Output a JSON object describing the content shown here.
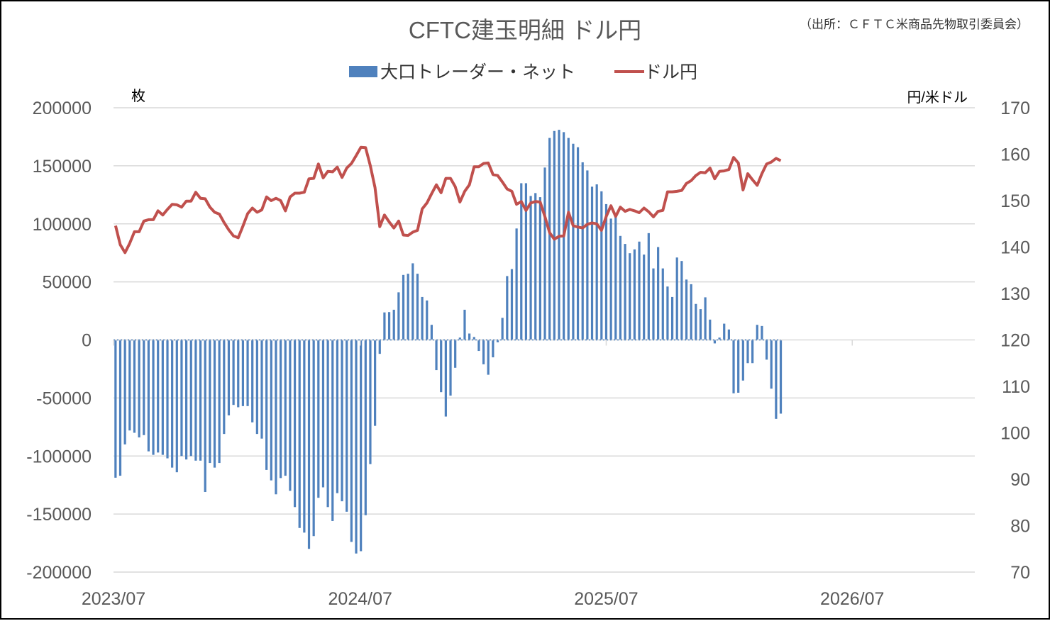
{
  "chart_data": {
    "type": "bar+line",
    "title": "CFTC建玉明細 ドル円",
    "source": "（出所：ＣＦＴＣ米商品先物取引委員会）",
    "left_unit": "枚",
    "right_unit": "円/米ドル",
    "left_ylim": [
      -200000,
      200000
    ],
    "left_ticks": [
      "200000",
      "150000",
      "100000",
      "50000",
      "0",
      "-50000",
      "-100000",
      "-150000",
      "-200000"
    ],
    "right_ylim": [
      70,
      170
    ],
    "right_ticks": [
      "170",
      "160",
      "150",
      "140",
      "130",
      "120",
      "110",
      "100",
      "90",
      "80",
      "70"
    ],
    "x_ticks": [
      "2023/07",
      "2024/07",
      "2025/07",
      "2026/07"
    ],
    "grid": true,
    "legend_placement": "top",
    "colors": {
      "bars": "#4f81bd",
      "line": "#c0504d",
      "title": "#595959"
    },
    "dates": [
      "2023-07-04",
      "2023-07-11",
      "2023-07-18",
      "2023-07-25",
      "2023-08-01",
      "2023-08-08",
      "2023-08-15",
      "2023-08-22",
      "2023-08-29",
      "2023-09-05",
      "2023-09-12",
      "2023-09-19",
      "2023-09-26",
      "2023-10-03",
      "2023-10-10",
      "2023-10-17",
      "2023-10-24",
      "2023-10-31",
      "2023-11-07",
      "2023-11-14",
      "2023-11-21",
      "2023-11-28",
      "2023-12-05",
      "2023-12-12",
      "2023-12-19",
      "2023-12-26",
      "2024-01-02",
      "2024-01-09",
      "2024-01-16",
      "2024-01-23",
      "2024-01-30",
      "2024-02-06",
      "2024-02-13",
      "2024-02-20",
      "2024-02-27",
      "2024-03-05",
      "2024-03-12",
      "2024-03-19",
      "2024-03-26",
      "2024-04-02",
      "2024-04-09",
      "2024-04-16",
      "2024-04-23",
      "2024-04-30",
      "2024-05-07",
      "2024-05-14",
      "2024-05-21",
      "2024-05-28",
      "2024-06-04",
      "2024-06-11",
      "2024-06-18",
      "2024-06-25",
      "2024-07-02",
      "2024-07-09",
      "2024-07-16",
      "2024-07-23",
      "2024-07-30",
      "2024-08-06",
      "2024-08-13",
      "2024-08-20",
      "2024-08-27",
      "2024-09-03",
      "2024-09-10",
      "2024-09-17",
      "2024-09-24",
      "2024-10-01",
      "2024-10-08",
      "2024-10-15",
      "2024-10-22",
      "2024-10-29",
      "2024-11-05",
      "2024-11-12",
      "2024-11-19",
      "2024-11-26",
      "2024-12-03",
      "2024-12-10",
      "2024-12-17",
      "2024-12-24",
      "2024-12-31",
      "2025-01-07",
      "2025-01-14",
      "2025-01-21",
      "2025-01-28",
      "2025-02-04",
      "2025-02-11",
      "2025-02-18",
      "2025-02-25",
      "2025-03-04",
      "2025-03-11",
      "2025-03-18",
      "2025-03-25",
      "2025-04-01",
      "2025-04-08",
      "2025-04-15",
      "2025-04-22",
      "2025-04-29",
      "2025-05-06",
      "2025-05-13",
      "2025-05-20",
      "2025-05-27",
      "2025-06-03",
      "2025-06-10",
      "2025-06-17",
      "2025-06-24",
      "2025-07-01",
      "2025-07-08",
      "2025-07-15",
      "2025-07-22",
      "2025-07-29",
      "2025-08-05",
      "2025-08-12",
      "2025-08-19",
      "2025-08-26",
      "2025-09-02",
      "2025-09-09",
      "2025-09-16",
      "2025-09-23",
      "2025-09-30",
      "2025-10-07",
      "2025-10-14",
      "2025-10-21",
      "2025-10-28",
      "2025-11-04",
      "2025-11-11",
      "2025-11-18",
      "2025-11-25",
      "2025-12-02",
      "2025-12-09",
      "2025-12-16",
      "2025-12-23",
      "2025-12-30",
      "2026-01-06",
      "2026-01-13",
      "2026-01-20",
      "2026-01-27",
      "2026-02-03",
      "2026-02-10",
      "2026-02-17",
      "2026-02-24",
      "2026-03-03",
      "2026-03-10",
      "2026-03-17"
    ],
    "series": [
      {
        "name": "大口トレーダー・ネット",
        "type": "bar",
        "axis": "left",
        "values": [
          -118700,
          -117000,
          -90000,
          -78000,
          -80000,
          -84000,
          -82000,
          -96000,
          -99000,
          -97000,
          -99000,
          -102000,
          -110000,
          -114000,
          -100000,
          -103000,
          -100000,
          -104000,
          -104000,
          -131000,
          -106000,
          -110000,
          -106000,
          -81000,
          -65000,
          -56000,
          -58000,
          -57000,
          -57000,
          -71000,
          -81000,
          -85000,
          -112000,
          -121000,
          -133000,
          -119000,
          -117000,
          -130000,
          -144000,
          -162000,
          -166000,
          -180000,
          -169000,
          -136000,
          -127000,
          -144000,
          -156000,
          -132000,
          -139000,
          -148000,
          -174000,
          -184000,
          -182000,
          -151000,
          -107000,
          -74000,
          -12000,
          23700,
          24000,
          26000,
          41000,
          56000,
          57000,
          66000,
          57000,
          37000,
          34000,
          13000,
          -26000,
          -45000,
          -66000,
          -48000,
          -24000,
          2000,
          26000,
          5500,
          2500,
          -9500,
          -21000,
          -30000,
          -15000,
          -2000,
          19000,
          55000,
          61000,
          96000,
          135000,
          135000,
          124000,
          126500,
          123000,
          148500,
          174000,
          180000,
          181000,
          179000,
          174000,
          169000,
          166000,
          153000,
          146000,
          132000,
          134000,
          128000,
          117000,
          104500,
          108600,
          89600,
          82700,
          74700,
          78000,
          84700,
          73500,
          92000,
          61600,
          80000,
          61600,
          46000,
          37000,
          71000,
          68000,
          52000,
          48000,
          31000,
          26500,
          36700,
          17500,
          -3000,
          2000,
          14000,
          9000,
          -46000,
          -45500,
          -35000,
          -20000,
          -20000,
          13000,
          12000,
          -17000,
          -42000,
          -68000,
          -63500
        ]
      },
      {
        "name": "ドル円",
        "type": "line",
        "axis": "right",
        "values": [
          144.6,
          140.5,
          138.8,
          140.8,
          143.3,
          143.3,
          145.6,
          145.9,
          145.9,
          147.8,
          146.9,
          148.1,
          149.2,
          149.1,
          148.6,
          149.9,
          149.9,
          151.8,
          150.5,
          150.4,
          148.6,
          147.5,
          147.1,
          145.3,
          143.7,
          142.4,
          142.0,
          144.5,
          147.2,
          148.4,
          147.5,
          148.0,
          150.8,
          150.0,
          150.5,
          150.0,
          147.8,
          150.8,
          151.6,
          151.6,
          151.8,
          154.7,
          154.8,
          157.9,
          154.9,
          156.3,
          156.2,
          157.2,
          155.0,
          157.0,
          158.0,
          159.7,
          161.5,
          161.4,
          157.5,
          152.8,
          144.4,
          146.9,
          145.4,
          144.1,
          145.6,
          142.6,
          142.5,
          143.2,
          143.6,
          148.2,
          149.5,
          151.5,
          153.4,
          151.7,
          154.8,
          154.8,
          153.0,
          149.7,
          152.0,
          153.4,
          157.3,
          157.3,
          158.0,
          158.1,
          155.6,
          155.4,
          154.0,
          152.5,
          152.0,
          149.2,
          149.8,
          147.9,
          149.5,
          149.8,
          149.7,
          146.6,
          143.1,
          141.7,
          142.3,
          142.4,
          147.5,
          144.6,
          144.3,
          144.1,
          144.9,
          145.2,
          145.0,
          143.6,
          146.6,
          148.9,
          146.6,
          148.6,
          147.7,
          148.1,
          147.8,
          147.4,
          148.4,
          147.6,
          146.5,
          147.7,
          147.9,
          151.9,
          151.9,
          152.0,
          152.2,
          153.7,
          154.3,
          155.4,
          156.1,
          156.0,
          157.0,
          154.7,
          156.3,
          156.4,
          156.7,
          159.3,
          158.1,
          152.3,
          155.8,
          154.5,
          153.3,
          155.8,
          157.9,
          158.3,
          159.1,
          158.6
        ]
      }
    ]
  }
}
